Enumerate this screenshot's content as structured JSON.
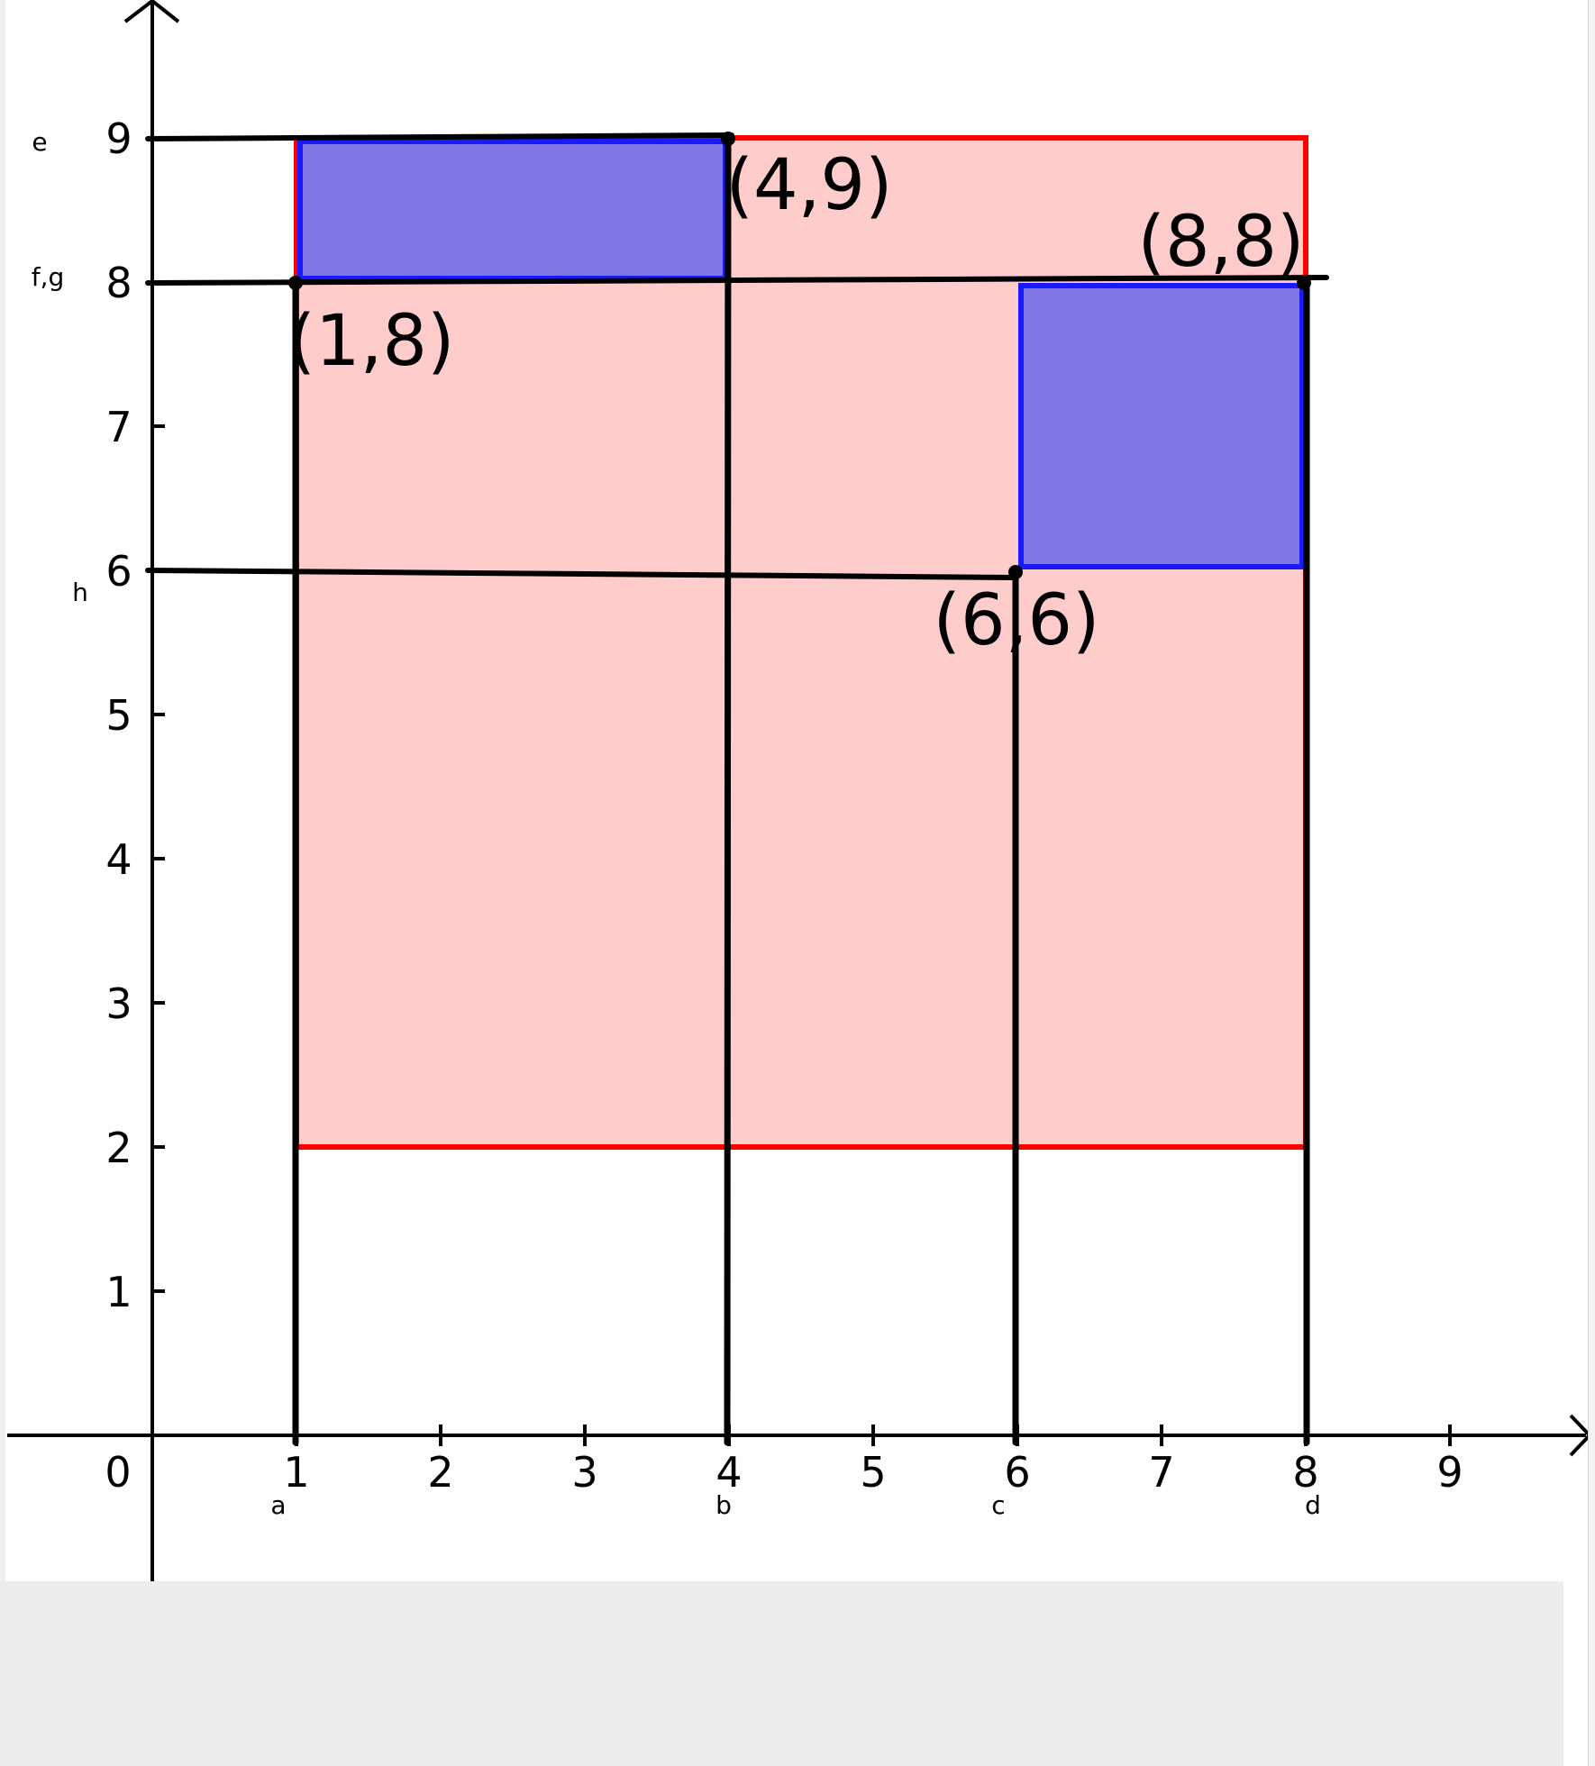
{
  "x_axis": {
    "origin_label": "0",
    "ticks": [
      "1",
      "2",
      "3",
      "4",
      "5",
      "6",
      "7",
      "8",
      "9"
    ],
    "tick_values": [
      1,
      2,
      3,
      4,
      5,
      6,
      7,
      8,
      9
    ]
  },
  "y_axis": {
    "ticks": [
      "1",
      "2",
      "3",
      "4",
      "5",
      "6",
      "7",
      "8",
      "9"
    ],
    "tick_values": [
      1,
      2,
      3,
      4,
      5,
      6,
      7,
      8,
      9
    ]
  },
  "large_rectangle": {
    "x_min": 1,
    "x_max": 8,
    "y_min": 2,
    "y_max": 9,
    "stroke": "#ff0000",
    "fill": "#ffcccc"
  },
  "small_rectangles": [
    {
      "x_min": 1,
      "x_max": 4,
      "y_min": 8,
      "y_max": 9,
      "stroke": "#1a1aff",
      "fill": "#8077e6"
    },
    {
      "x_min": 6,
      "x_max": 8,
      "y_min": 6,
      "y_max": 8,
      "stroke": "#1a1aff",
      "fill": "#8077e6"
    }
  ],
  "vertical_lines": [
    {
      "x": 1,
      "y_top": 8,
      "label": "a"
    },
    {
      "x": 4,
      "y_top": 9,
      "label": "b"
    },
    {
      "x": 6,
      "y_top": 6,
      "label": "c"
    },
    {
      "x": 8,
      "y_top": 8,
      "label": "d"
    }
  ],
  "horizontal_lines": [
    {
      "y": 9,
      "x_end": 4,
      "label": "e"
    },
    {
      "y": 8,
      "x_end": 8.1,
      "label": "f,g"
    },
    {
      "y": 6,
      "x_end": 6,
      "label": "h"
    }
  ],
  "points": [
    {
      "x": 4,
      "y": 9,
      "label": "(4,9)"
    },
    {
      "x": 1,
      "y": 8,
      "label": "(1,8)"
    },
    {
      "x": 8,
      "y": 8,
      "label": "(8,8)"
    },
    {
      "x": 6,
      "y": 6,
      "label": "(6,6)"
    }
  ],
  "colors": {
    "line": "#000000",
    "red": "#ff0000",
    "blue": "#1a1aff"
  }
}
